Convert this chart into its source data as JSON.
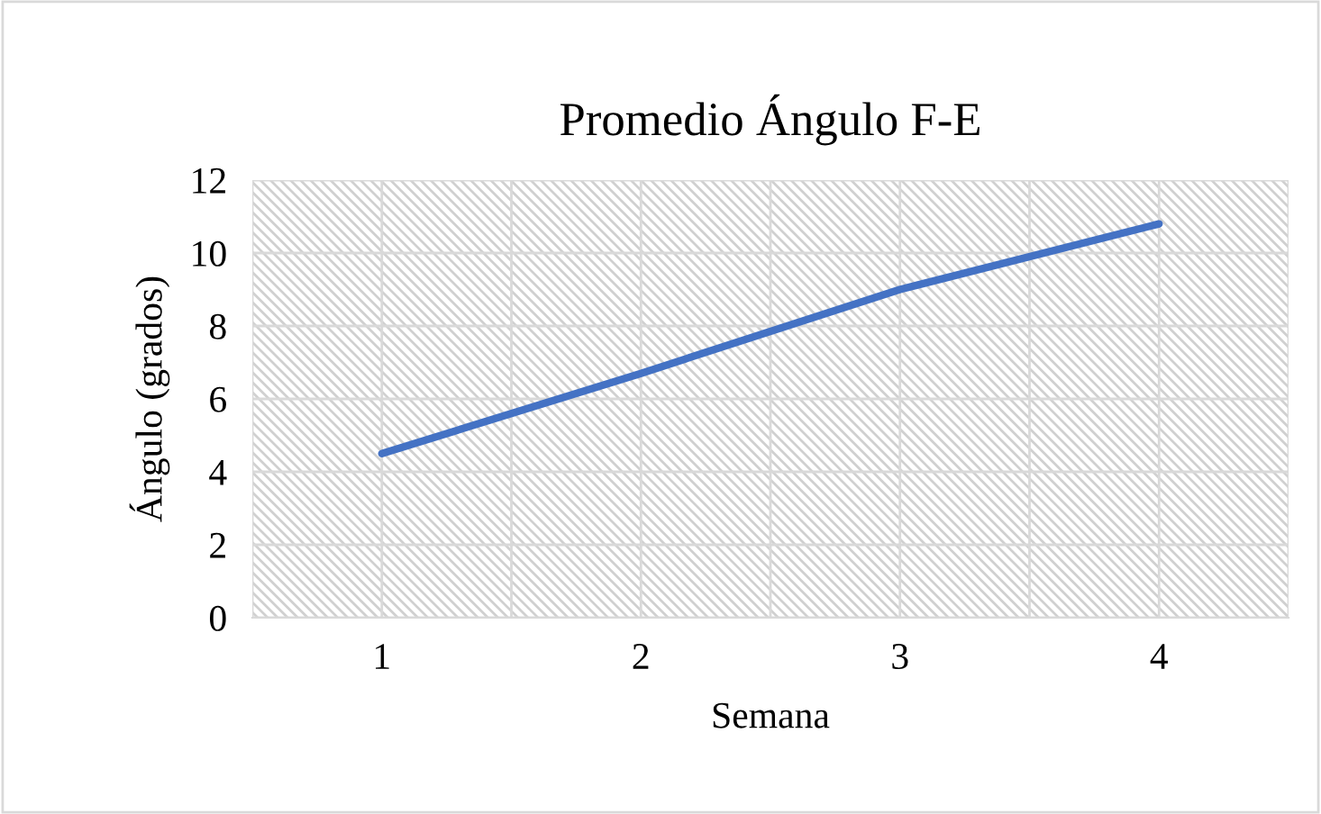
{
  "chart_data": {
    "type": "line",
    "title": "Promedio Ángulo F-E",
    "xlabel": "Semana",
    "ylabel": "Ángulo (grados)",
    "categories": [
      "1",
      "2",
      "3",
      "4"
    ],
    "series": [
      {
        "color": "#4472c4",
        "values": [
          4.5,
          6.7,
          9.0,
          10.8
        ]
      }
    ],
    "ylim": [
      0,
      12
    ],
    "yticks": [
      0,
      2,
      4,
      6,
      8,
      10,
      12
    ],
    "grid": true,
    "legend": false,
    "marker": "none",
    "line_style": "solid"
  }
}
